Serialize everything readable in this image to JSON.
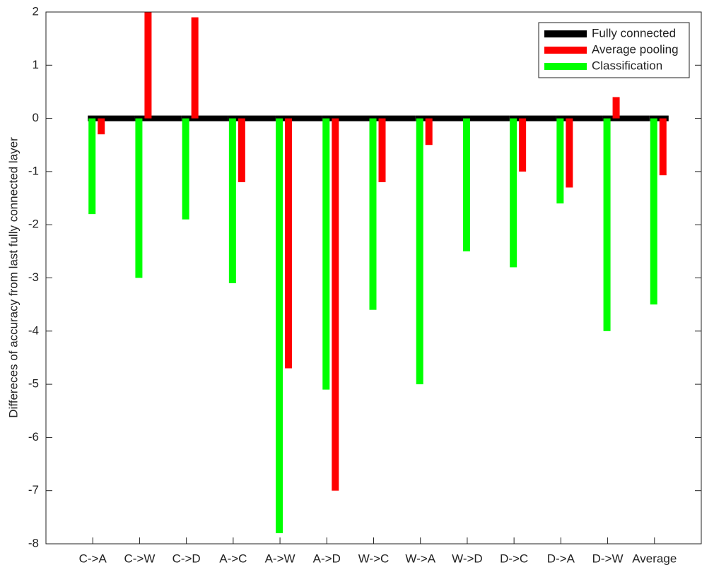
{
  "chart_data": {
    "type": "bar",
    "y_label": "Differeces of accuracy from last fully connected layer",
    "categories": [
      "C->A",
      "C->W",
      "C->D",
      "A->C",
      "A->W",
      "A->D",
      "W->C",
      "W->A",
      "W->D",
      "D->C",
      "D->A",
      "D->W",
      "Average"
    ],
    "series": [
      {
        "name": "Fully connected",
        "color": "#000000",
        "values": [
          0,
          0,
          0,
          0,
          0,
          0,
          0,
          0,
          0,
          0,
          0,
          0,
          0
        ]
      },
      {
        "name": "Average pooling",
        "color": "#ff0000",
        "values": [
          -0.3,
          2,
          1.9,
          -1.2,
          -4.7,
          -7,
          -1.2,
          -0.5,
          0,
          -1,
          -1.3,
          0.4,
          -1.07
        ]
      },
      {
        "name": "Classification",
        "color": "#00ff00",
        "values": [
          -1.8,
          -3,
          -1.9,
          -3.1,
          -7.8,
          -5.1,
          -3.6,
          -5,
          -2.5,
          -2.8,
          -1.6,
          -4,
          -3.5
        ]
      }
    ],
    "ylim": [
      -8,
      2
    ],
    "yticks": [
      -8,
      -7,
      -6,
      -5,
      -4,
      -3,
      -2,
      -1,
      0,
      1,
      2
    ],
    "legend": "upper-right"
  }
}
